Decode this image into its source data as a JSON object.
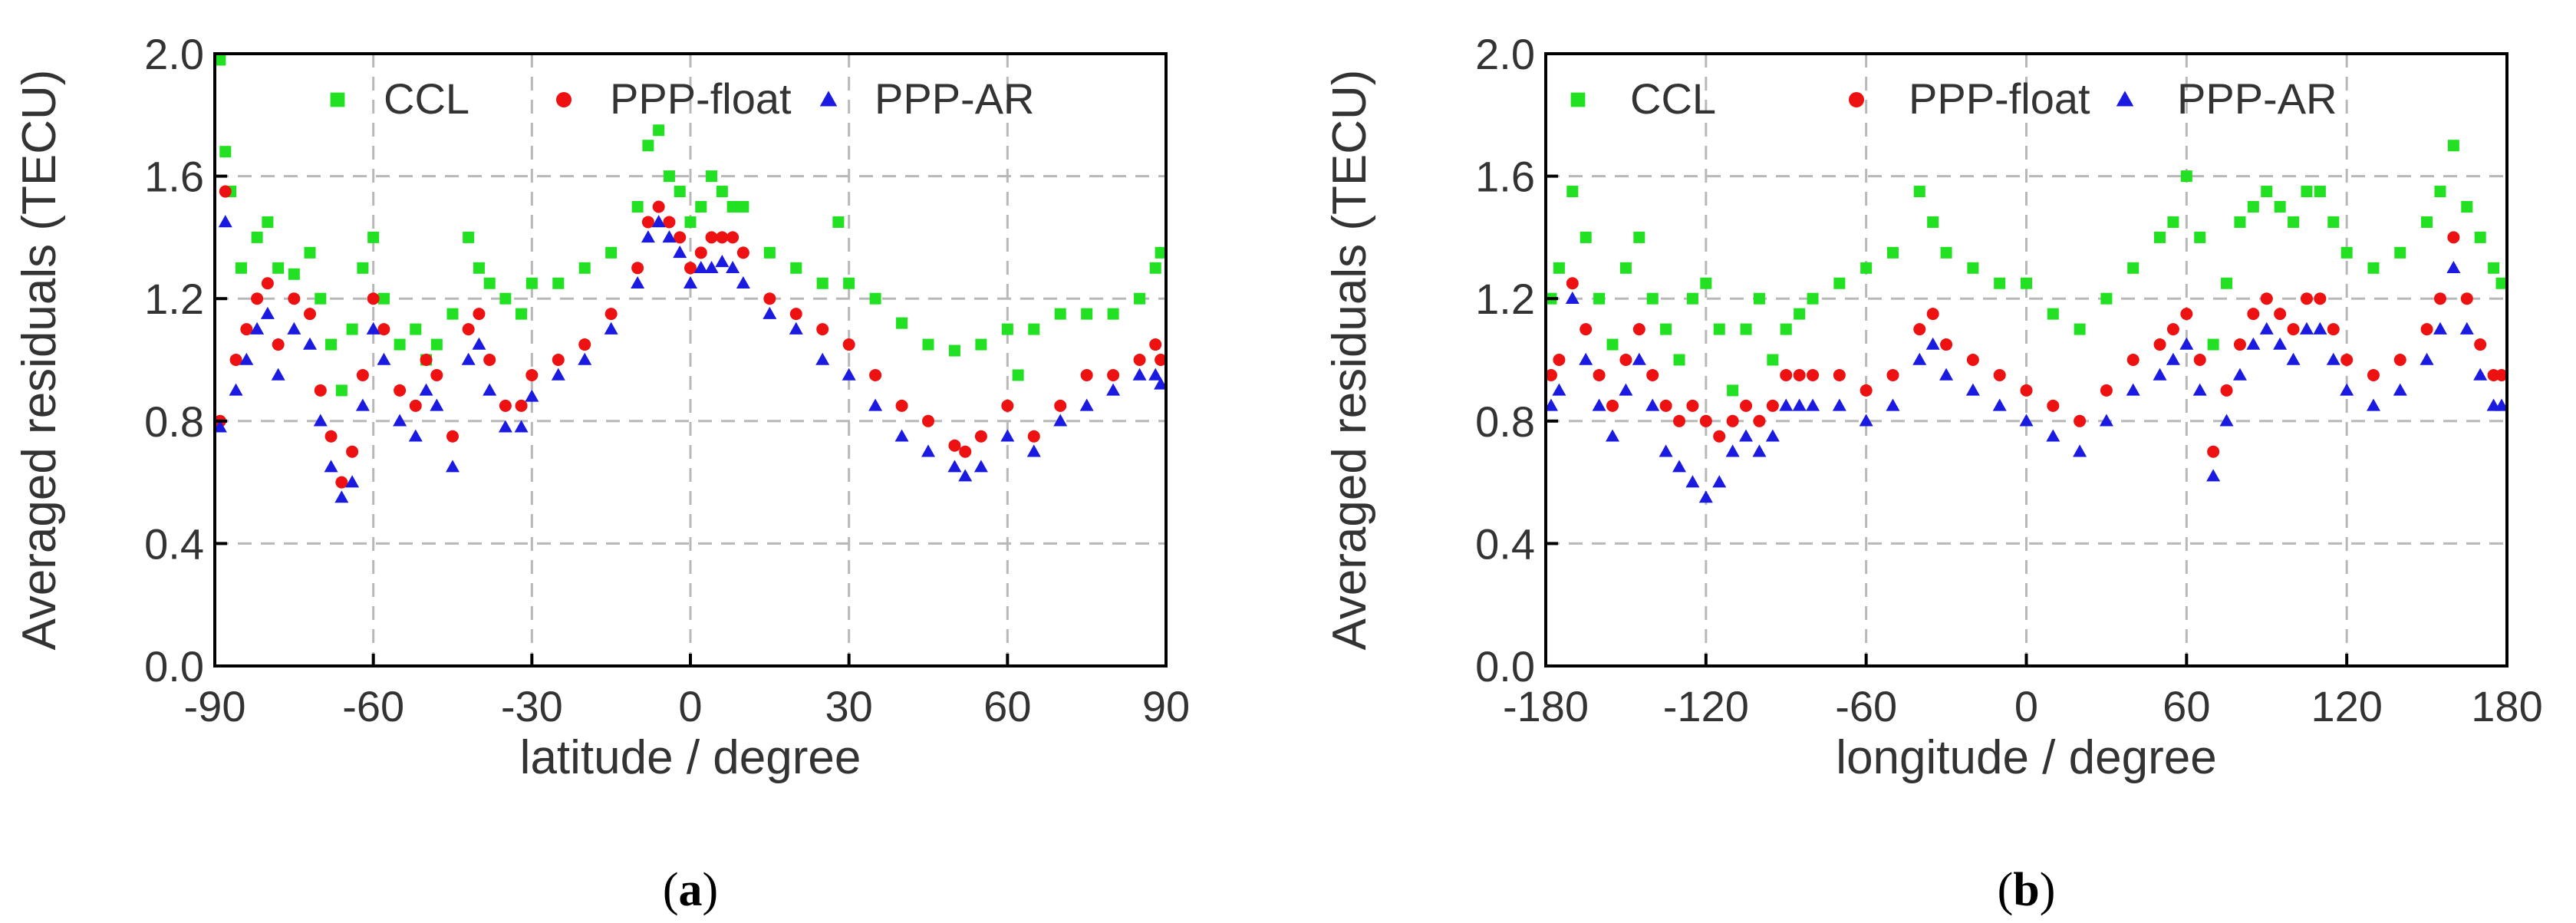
{
  "colors": {
    "CCL": "#22e022",
    "PPP-float": "#ee1111",
    "PPP-AR": "#1a1ae0",
    "grid": "#b8b8b8",
    "axis": "#000000"
  },
  "chart_data": [
    {
      "type": "scatter",
      "caption_letter": "a",
      "xlabel": "latitude / degree",
      "ylabel": "Averaged residuals (TECU)",
      "xlim": [
        -90,
        90
      ],
      "ylim": [
        0.0,
        2.0
      ],
      "xticks": [
        "-90",
        "-60",
        "-30",
        "0",
        "30",
        "60",
        "90"
      ],
      "yticks": [
        "0.0",
        "0.4",
        "0.8",
        "1.2",
        "1.6",
        "2.0"
      ],
      "grid": true,
      "legend_position": "top",
      "series": [
        {
          "name": "CCL",
          "marker": "square",
          "x": [
            -89,
            -88,
            -87,
            -85,
            -82,
            -80,
            -78,
            -75,
            -72,
            -70,
            -68,
            -66,
            -64,
            -62,
            -60,
            -58,
            -55,
            -52,
            -50,
            -48,
            -45,
            -42,
            -40,
            -38,
            -35,
            -32,
            -30,
            -25,
            -20,
            -15,
            -10,
            -8,
            -6,
            -4,
            -2,
            0,
            2,
            4,
            6,
            8,
            10,
            15,
            20,
            25,
            28,
            30,
            35,
            40,
            45,
            50,
            55,
            60,
            62,
            65,
            70,
            75,
            80,
            85,
            88,
            89
          ],
          "y": [
            1.98,
            1.68,
            1.55,
            1.3,
            1.4,
            1.45,
            1.3,
            1.28,
            1.35,
            1.2,
            1.05,
            0.9,
            1.1,
            1.3,
            1.4,
            1.2,
            1.05,
            1.1,
            1.0,
            1.05,
            1.15,
            1.4,
            1.3,
            1.25,
            1.2,
            1.15,
            1.25,
            1.25,
            1.3,
            1.35,
            1.5,
            1.7,
            1.75,
            1.6,
            1.55,
            1.45,
            1.5,
            1.6,
            1.55,
            1.5,
            1.5,
            1.35,
            1.3,
            1.25,
            1.45,
            1.25,
            1.2,
            1.12,
            1.05,
            1.03,
            1.05,
            1.1,
            0.95,
            1.1,
            1.15,
            1.15,
            1.15,
            1.2,
            1.3,
            1.35
          ]
        },
        {
          "name": "PPP-float",
          "marker": "circle",
          "x": [
            -89,
            -88,
            -86,
            -84,
            -82,
            -80,
            -78,
            -75,
            -72,
            -70,
            -68,
            -66,
            -64,
            -62,
            -60,
            -58,
            -55,
            -52,
            -50,
            -48,
            -45,
            -42,
            -40,
            -38,
            -35,
            -32,
            -30,
            -25,
            -20,
            -15,
            -10,
            -8,
            -6,
            -4,
            -2,
            0,
            2,
            4,
            6,
            8,
            10,
            15,
            20,
            25,
            30,
            35,
            40,
            45,
            50,
            52,
            55,
            60,
            65,
            70,
            75,
            80,
            85,
            88,
            89
          ],
          "y": [
            0.8,
            1.55,
            1.0,
            1.1,
            1.2,
            1.25,
            1.05,
            1.2,
            1.15,
            0.9,
            0.75,
            0.6,
            0.7,
            0.95,
            1.2,
            1.1,
            0.9,
            0.85,
            1.0,
            0.95,
            0.75,
            1.1,
            1.15,
            1.0,
            0.85,
            0.85,
            0.95,
            1.0,
            1.05,
            1.15,
            1.3,
            1.45,
            1.5,
            1.45,
            1.4,
            1.3,
            1.35,
            1.4,
            1.4,
            1.4,
            1.35,
            1.2,
            1.15,
            1.1,
            1.05,
            0.95,
            0.85,
            0.8,
            0.72,
            0.7,
            0.75,
            0.85,
            0.75,
            0.85,
            0.95,
            0.95,
            1.0,
            1.05,
            1.0
          ]
        },
        {
          "name": "PPP-AR",
          "marker": "triangle",
          "x": [
            -89,
            -88,
            -86,
            -84,
            -82,
            -80,
            -78,
            -75,
            -72,
            -70,
            -68,
            -66,
            -64,
            -62,
            -60,
            -58,
            -55,
            -52,
            -50,
            -48,
            -45,
            -42,
            -40,
            -38,
            -35,
            -32,
            -30,
            -25,
            -20,
            -15,
            -10,
            -8,
            -6,
            -4,
            -2,
            0,
            2,
            4,
            6,
            8,
            10,
            15,
            20,
            25,
            30,
            35,
            40,
            45,
            50,
            52,
            55,
            60,
            65,
            70,
            75,
            80,
            85,
            88,
            89
          ],
          "y": [
            0.78,
            1.45,
            0.9,
            1.0,
            1.1,
            1.15,
            0.95,
            1.1,
            1.05,
            0.8,
            0.65,
            0.55,
            0.6,
            0.85,
            1.1,
            1.0,
            0.8,
            0.75,
            0.9,
            0.85,
            0.65,
            1.0,
            1.05,
            0.9,
            0.78,
            0.78,
            0.88,
            0.95,
            1.0,
            1.1,
            1.25,
            1.4,
            1.45,
            1.4,
            1.35,
            1.25,
            1.3,
            1.3,
            1.32,
            1.3,
            1.25,
            1.15,
            1.1,
            1.0,
            0.95,
            0.85,
            0.75,
            0.7,
            0.65,
            0.62,
            0.65,
            0.75,
            0.7,
            0.8,
            0.85,
            0.9,
            0.95,
            0.95,
            0.92
          ]
        }
      ]
    },
    {
      "type": "scatter",
      "caption_letter": "b",
      "xlabel": "longitude / degree",
      "ylabel": "Averaged residuals (TECU)",
      "xlim": [
        -180,
        180
      ],
      "ylim": [
        0.0,
        2.0
      ],
      "xticks": [
        "-180",
        "-120",
        "-60",
        "0",
        "60",
        "120",
        "180"
      ],
      "yticks": [
        "0.0",
        "0.4",
        "0.8",
        "1.2",
        "1.6",
        "2.0"
      ],
      "grid": true,
      "legend_position": "top",
      "series": [
        {
          "name": "CCL",
          "marker": "square",
          "x": [
            -178,
            -175,
            -170,
            -165,
            -160,
            -155,
            -150,
            -145,
            -140,
            -135,
            -130,
            -125,
            -120,
            -115,
            -110,
            -105,
            -100,
            -95,
            -90,
            -85,
            -80,
            -70,
            -60,
            -50,
            -40,
            -35,
            -30,
            -20,
            -10,
            0,
            10,
            20,
            30,
            40,
            50,
            55,
            60,
            65,
            70,
            75,
            80,
            85,
            90,
            95,
            100,
            105,
            110,
            115,
            120,
            130,
            140,
            150,
            155,
            160,
            165,
            170,
            175,
            178
          ],
          "y": [
            1.2,
            1.3,
            1.55,
            1.4,
            1.2,
            1.05,
            1.3,
            1.4,
            1.2,
            1.1,
            1.0,
            1.2,
            1.25,
            1.1,
            0.9,
            1.1,
            1.2,
            1.0,
            1.1,
            1.15,
            1.2,
            1.25,
            1.3,
            1.35,
            1.55,
            1.45,
            1.35,
            1.3,
            1.25,
            1.25,
            1.15,
            1.1,
            1.2,
            1.3,
            1.4,
            1.45,
            1.6,
            1.4,
            1.05,
            1.25,
            1.45,
            1.5,
            1.55,
            1.5,
            1.45,
            1.55,
            1.55,
            1.45,
            1.35,
            1.3,
            1.35,
            1.45,
            1.55,
            1.7,
            1.5,
            1.4,
            1.3,
            1.25
          ]
        },
        {
          "name": "PPP-float",
          "marker": "circle",
          "x": [
            -178,
            -175,
            -170,
            -165,
            -160,
            -155,
            -150,
            -145,
            -140,
            -135,
            -130,
            -125,
            -120,
            -115,
            -110,
            -105,
            -100,
            -95,
            -90,
            -85,
            -80,
            -70,
            -60,
            -50,
            -40,
            -35,
            -30,
            -20,
            -10,
            0,
            10,
            20,
            30,
            40,
            50,
            55,
            60,
            65,
            70,
            75,
            80,
            85,
            90,
            95,
            100,
            105,
            110,
            115,
            120,
            130,
            140,
            150,
            155,
            160,
            165,
            170,
            175,
            178
          ],
          "y": [
            0.95,
            1.0,
            1.25,
            1.1,
            0.95,
            0.85,
            1.0,
            1.1,
            0.95,
            0.85,
            0.8,
            0.85,
            0.8,
            0.75,
            0.8,
            0.85,
            0.8,
            0.85,
            0.95,
            0.95,
            0.95,
            0.95,
            0.9,
            0.95,
            1.1,
            1.15,
            1.05,
            1.0,
            0.95,
            0.9,
            0.85,
            0.8,
            0.9,
            1.0,
            1.05,
            1.1,
            1.15,
            1.0,
            0.7,
            0.9,
            1.05,
            1.15,
            1.2,
            1.15,
            1.1,
            1.2,
            1.2,
            1.1,
            1.0,
            0.95,
            1.0,
            1.1,
            1.2,
            1.4,
            1.2,
            1.05,
            0.95,
            0.95
          ]
        },
        {
          "name": "PPP-AR",
          "marker": "triangle",
          "x": [
            -178,
            -175,
            -170,
            -165,
            -160,
            -155,
            -150,
            -145,
            -140,
            -135,
            -130,
            -125,
            -120,
            -115,
            -110,
            -105,
            -100,
            -95,
            -90,
            -85,
            -80,
            -70,
            -60,
            -50,
            -40,
            -35,
            -30,
            -20,
            -10,
            0,
            10,
            20,
            30,
            40,
            50,
            55,
            60,
            65,
            70,
            75,
            80,
            85,
            90,
            95,
            100,
            105,
            110,
            115,
            120,
            130,
            140,
            150,
            155,
            160,
            165,
            170,
            175,
            178
          ],
          "y": [
            0.85,
            0.9,
            1.2,
            1.0,
            0.85,
            0.75,
            0.9,
            1.0,
            0.85,
            0.7,
            0.65,
            0.6,
            0.55,
            0.6,
            0.7,
            0.75,
            0.7,
            0.75,
            0.85,
            0.85,
            0.85,
            0.85,
            0.8,
            0.85,
            1.0,
            1.05,
            0.95,
            0.9,
            0.85,
            0.8,
            0.75,
            0.7,
            0.8,
            0.9,
            0.95,
            1.0,
            1.05,
            0.9,
            0.62,
            0.8,
            0.95,
            1.05,
            1.1,
            1.05,
            1.0,
            1.1,
            1.1,
            1.0,
            0.9,
            0.85,
            0.9,
            1.0,
            1.1,
            1.3,
            1.1,
            0.95,
            0.85,
            0.85
          ]
        }
      ]
    }
  ]
}
